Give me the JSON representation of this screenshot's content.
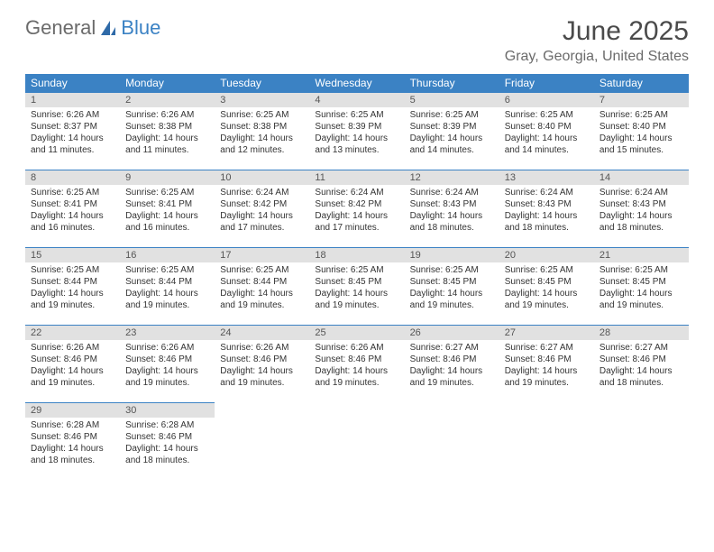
{
  "logo": {
    "text1": "General",
    "text2": "Blue"
  },
  "header": {
    "month_title": "June 2025",
    "location": "Gray, Georgia, United States"
  },
  "colors": {
    "header_blue": "#3b82c4",
    "daynum_bg": "#e1e1e1",
    "text_gray": "#6b6b6b",
    "body_text": "#333333",
    "page_bg": "#ffffff"
  },
  "typography": {
    "title_fontsize": 30,
    "location_fontsize": 16,
    "weekday_fontsize": 12,
    "daynum_fontsize": 11,
    "cell_fontsize": 10
  },
  "weekdays": [
    "Sunday",
    "Monday",
    "Tuesday",
    "Wednesday",
    "Thursday",
    "Friday",
    "Saturday"
  ],
  "weeks": [
    [
      {
        "n": "1",
        "sr": "Sunrise: 6:26 AM",
        "ss": "Sunset: 8:37 PM",
        "d1": "Daylight: 14 hours",
        "d2": "and 11 minutes."
      },
      {
        "n": "2",
        "sr": "Sunrise: 6:26 AM",
        "ss": "Sunset: 8:38 PM",
        "d1": "Daylight: 14 hours",
        "d2": "and 11 minutes."
      },
      {
        "n": "3",
        "sr": "Sunrise: 6:25 AM",
        "ss": "Sunset: 8:38 PM",
        "d1": "Daylight: 14 hours",
        "d2": "and 12 minutes."
      },
      {
        "n": "4",
        "sr": "Sunrise: 6:25 AM",
        "ss": "Sunset: 8:39 PM",
        "d1": "Daylight: 14 hours",
        "d2": "and 13 minutes."
      },
      {
        "n": "5",
        "sr": "Sunrise: 6:25 AM",
        "ss": "Sunset: 8:39 PM",
        "d1": "Daylight: 14 hours",
        "d2": "and 14 minutes."
      },
      {
        "n": "6",
        "sr": "Sunrise: 6:25 AM",
        "ss": "Sunset: 8:40 PM",
        "d1": "Daylight: 14 hours",
        "d2": "and 14 minutes."
      },
      {
        "n": "7",
        "sr": "Sunrise: 6:25 AM",
        "ss": "Sunset: 8:40 PM",
        "d1": "Daylight: 14 hours",
        "d2": "and 15 minutes."
      }
    ],
    [
      {
        "n": "8",
        "sr": "Sunrise: 6:25 AM",
        "ss": "Sunset: 8:41 PM",
        "d1": "Daylight: 14 hours",
        "d2": "and 16 minutes."
      },
      {
        "n": "9",
        "sr": "Sunrise: 6:25 AM",
        "ss": "Sunset: 8:41 PM",
        "d1": "Daylight: 14 hours",
        "d2": "and 16 minutes."
      },
      {
        "n": "10",
        "sr": "Sunrise: 6:24 AM",
        "ss": "Sunset: 8:42 PM",
        "d1": "Daylight: 14 hours",
        "d2": "and 17 minutes."
      },
      {
        "n": "11",
        "sr": "Sunrise: 6:24 AM",
        "ss": "Sunset: 8:42 PM",
        "d1": "Daylight: 14 hours",
        "d2": "and 17 minutes."
      },
      {
        "n": "12",
        "sr": "Sunrise: 6:24 AM",
        "ss": "Sunset: 8:43 PM",
        "d1": "Daylight: 14 hours",
        "d2": "and 18 minutes."
      },
      {
        "n": "13",
        "sr": "Sunrise: 6:24 AM",
        "ss": "Sunset: 8:43 PM",
        "d1": "Daylight: 14 hours",
        "d2": "and 18 minutes."
      },
      {
        "n": "14",
        "sr": "Sunrise: 6:24 AM",
        "ss": "Sunset: 8:43 PM",
        "d1": "Daylight: 14 hours",
        "d2": "and 18 minutes."
      }
    ],
    [
      {
        "n": "15",
        "sr": "Sunrise: 6:25 AM",
        "ss": "Sunset: 8:44 PM",
        "d1": "Daylight: 14 hours",
        "d2": "and 19 minutes."
      },
      {
        "n": "16",
        "sr": "Sunrise: 6:25 AM",
        "ss": "Sunset: 8:44 PM",
        "d1": "Daylight: 14 hours",
        "d2": "and 19 minutes."
      },
      {
        "n": "17",
        "sr": "Sunrise: 6:25 AM",
        "ss": "Sunset: 8:44 PM",
        "d1": "Daylight: 14 hours",
        "d2": "and 19 minutes."
      },
      {
        "n": "18",
        "sr": "Sunrise: 6:25 AM",
        "ss": "Sunset: 8:45 PM",
        "d1": "Daylight: 14 hours",
        "d2": "and 19 minutes."
      },
      {
        "n": "19",
        "sr": "Sunrise: 6:25 AM",
        "ss": "Sunset: 8:45 PM",
        "d1": "Daylight: 14 hours",
        "d2": "and 19 minutes."
      },
      {
        "n": "20",
        "sr": "Sunrise: 6:25 AM",
        "ss": "Sunset: 8:45 PM",
        "d1": "Daylight: 14 hours",
        "d2": "and 19 minutes."
      },
      {
        "n": "21",
        "sr": "Sunrise: 6:25 AM",
        "ss": "Sunset: 8:45 PM",
        "d1": "Daylight: 14 hours",
        "d2": "and 19 minutes."
      }
    ],
    [
      {
        "n": "22",
        "sr": "Sunrise: 6:26 AM",
        "ss": "Sunset: 8:46 PM",
        "d1": "Daylight: 14 hours",
        "d2": "and 19 minutes."
      },
      {
        "n": "23",
        "sr": "Sunrise: 6:26 AM",
        "ss": "Sunset: 8:46 PM",
        "d1": "Daylight: 14 hours",
        "d2": "and 19 minutes."
      },
      {
        "n": "24",
        "sr": "Sunrise: 6:26 AM",
        "ss": "Sunset: 8:46 PM",
        "d1": "Daylight: 14 hours",
        "d2": "and 19 minutes."
      },
      {
        "n": "25",
        "sr": "Sunrise: 6:26 AM",
        "ss": "Sunset: 8:46 PM",
        "d1": "Daylight: 14 hours",
        "d2": "and 19 minutes."
      },
      {
        "n": "26",
        "sr": "Sunrise: 6:27 AM",
        "ss": "Sunset: 8:46 PM",
        "d1": "Daylight: 14 hours",
        "d2": "and 19 minutes."
      },
      {
        "n": "27",
        "sr": "Sunrise: 6:27 AM",
        "ss": "Sunset: 8:46 PM",
        "d1": "Daylight: 14 hours",
        "d2": "and 19 minutes."
      },
      {
        "n": "28",
        "sr": "Sunrise: 6:27 AM",
        "ss": "Sunset: 8:46 PM",
        "d1": "Daylight: 14 hours",
        "d2": "and 18 minutes."
      }
    ],
    [
      {
        "n": "29",
        "sr": "Sunrise: 6:28 AM",
        "ss": "Sunset: 8:46 PM",
        "d1": "Daylight: 14 hours",
        "d2": "and 18 minutes."
      },
      {
        "n": "30",
        "sr": "Sunrise: 6:28 AM",
        "ss": "Sunset: 8:46 PM",
        "d1": "Daylight: 14 hours",
        "d2": "and 18 minutes."
      },
      {
        "blank": true
      },
      {
        "blank": true
      },
      {
        "blank": true
      },
      {
        "blank": true
      },
      {
        "blank": true
      }
    ]
  ]
}
